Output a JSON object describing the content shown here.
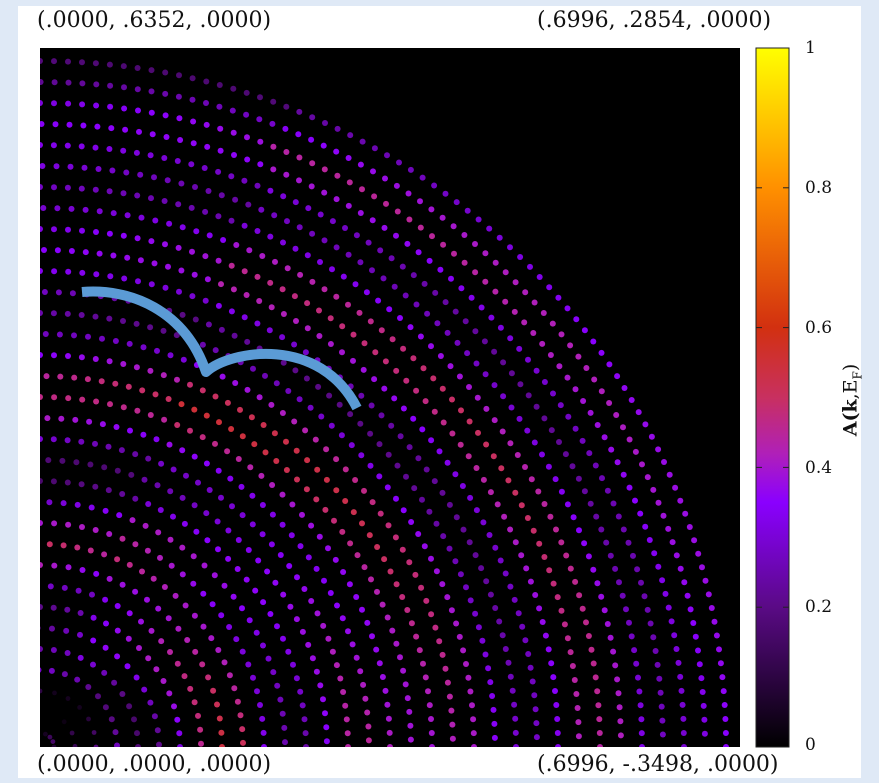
{
  "corners": {
    "top_left": "(.0000, .6352, .0000)",
    "top_right": "(.6996, .2854, .0000)",
    "bottom_left": "(.0000, .0000, .0000)",
    "bottom_right": "(.6996, -.3498, .0000)"
  },
  "colorbar": {
    "label_prefix": "A(",
    "label_k": "k",
    "label_mid": ",E",
    "label_sub": "F",
    "label_suffix": ")",
    "ticks": [
      "1",
      "0.8",
      "0.6",
      "0.4",
      "0.2",
      "0"
    ],
    "range": [
      0,
      1
    ],
    "palette": [
      "#000000",
      "#5a0a85",
      "#8a00ff",
      "#c020a0",
      "#d23010",
      "#ff9000",
      "#ffff00"
    ]
  },
  "chart_data": {
    "type": "scatter",
    "title": "",
    "xlabel": "",
    "ylabel": "",
    "zlabel": "A(k,E_F)",
    "zlim": [
      0,
      1
    ],
    "grid": false,
    "background": "#000000",
    "overlay_curve_color": "#5b9bd5",
    "description_values": {
      "rings": [
        {
          "ring": 1,
          "A": 0.08
        },
        {
          "ring": 2,
          "A": 0.05
        },
        {
          "ring": 3,
          "A": 0.12
        },
        {
          "ring": 4,
          "A": 0.26
        },
        {
          "ring": 5,
          "A": 0.24
        },
        {
          "ring": 6,
          "A": 0.28
        },
        {
          "ring": 7,
          "A": 0.33
        },
        {
          "ring": 8,
          "A": 0.4
        },
        {
          "ring": 9,
          "A": 0.46
        },
        {
          "ring": 10,
          "A": 0.48
        },
        {
          "ring": 11,
          "A": 0.38
        },
        {
          "ring": 12,
          "A": 0.33
        },
        {
          "ring": 13,
          "A": 0.28
        },
        {
          "ring": 14,
          "A": 0.3
        },
        {
          "ring": 15,
          "A": 0.36
        },
        {
          "ring": 16,
          "A": 0.4
        },
        {
          "ring": 17,
          "A": 0.44
        },
        {
          "ring": 18,
          "A": 0.47
        },
        {
          "ring": 19,
          "A": 0.45
        },
        {
          "ring": 20,
          "A": 0.4
        },
        {
          "ring": 21,
          "A": 0.33
        },
        {
          "ring": 22,
          "A": 0.28
        },
        {
          "ring": 23,
          "A": 0.3
        },
        {
          "ring": 24,
          "A": 0.35
        },
        {
          "ring": 25,
          "A": 0.4
        },
        {
          "ring": 26,
          "A": 0.42
        },
        {
          "ring": 27,
          "A": 0.38
        },
        {
          "ring": 28,
          "A": 0.34
        },
        {
          "ring": 29,
          "A": 0.3
        },
        {
          "ring": 30,
          "A": 0.33
        },
        {
          "ring": 31,
          "A": 0.37
        },
        {
          "ring": 32,
          "A": 0.34
        },
        {
          "ring": 33,
          "A": 0.3
        }
      ]
    }
  }
}
